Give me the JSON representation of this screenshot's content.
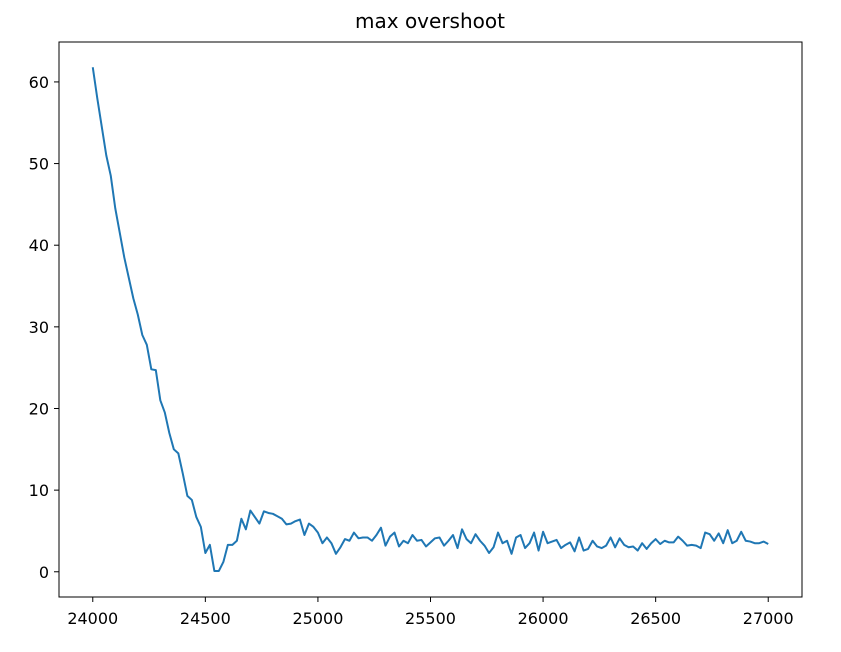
{
  "chart_data": {
    "type": "line",
    "title": "max overshoot",
    "x": [
      24000,
      24020,
      24040,
      24060,
      24080,
      24100,
      24120,
      24140,
      24160,
      24180,
      24200,
      24220,
      24240,
      24260,
      24280,
      24300,
      24320,
      24340,
      24360,
      24380,
      24400,
      24420,
      24440,
      24460,
      24480,
      24500,
      24520,
      24540,
      24560,
      24580,
      24600,
      24620,
      24640,
      24660,
      24680,
      24700,
      24720,
      24740,
      24760,
      24780,
      24800,
      24820,
      24840,
      24860,
      24880,
      24900,
      24920,
      24940,
      24960,
      24980,
      25000,
      25020,
      25040,
      25060,
      25080,
      25100,
      25120,
      25140,
      25160,
      25180,
      25200,
      25220,
      25240,
      25260,
      25280,
      25300,
      25320,
      25340,
      25360,
      25380,
      25400,
      25420,
      25440,
      25460,
      25480,
      25500,
      25520,
      25540,
      25560,
      25580,
      25600,
      25620,
      25640,
      25660,
      25680,
      25700,
      25720,
      25740,
      25760,
      25780,
      25800,
      25820,
      25840,
      25860,
      25880,
      25900,
      25920,
      25940,
      25960,
      25980,
      26000,
      26020,
      26040,
      26060,
      26080,
      26100,
      26120,
      26140,
      26160,
      26180,
      26200,
      26220,
      26240,
      26260,
      26280,
      26300,
      26320,
      26340,
      26360,
      26380,
      26400,
      26420,
      26440,
      26460,
      26480,
      26500,
      26520,
      26540,
      26560,
      26580,
      26600,
      26620,
      26640,
      26660,
      26680,
      26700,
      26720,
      26740,
      26760,
      26780,
      26800,
      26820,
      26840,
      26860,
      26880,
      26900,
      26920,
      26940,
      26960,
      26980,
      27000
    ],
    "series": [
      {
        "color": "#1f77b4",
        "values": [
          61.8,
          58,
          54.5,
          51,
          48.5,
          44.5,
          41.5,
          38.5,
          36,
          33.5,
          31.5,
          29,
          27.8,
          24.8,
          24.7,
          21,
          19.5,
          17,
          15,
          14.5,
          12,
          9.3,
          8.8,
          6.7,
          5.5,
          2.3,
          3.3,
          0.1,
          0.1,
          1.2,
          3.3,
          3.3,
          3.8,
          6.5,
          5.2,
          7.5,
          6.7,
          5.9,
          7.4,
          7.2,
          7.1,
          6.8,
          6.5,
          5.8,
          5.9,
          6.2,
          6.4,
          4.5,
          5.9,
          5.5,
          4.8,
          3.5,
          4.2,
          3.5,
          2.2,
          3.0,
          4.0,
          3.8,
          4.8,
          4.1,
          4.2,
          4.2,
          3.8,
          4.5,
          5.4,
          3.2,
          4.3,
          4.8,
          3.1,
          3.8,
          3.5,
          4.5,
          3.8,
          3.9,
          3.1,
          3.6,
          4.1,
          4.2,
          3.2,
          3.8,
          4.5,
          2.9,
          5.2,
          4.0,
          3.5,
          4.6,
          3.8,
          3.2,
          2.3,
          3.0,
          4.8,
          3.5,
          3.8,
          2.2,
          4.2,
          4.5,
          2.9,
          3.5,
          4.8,
          2.6,
          4.9,
          3.5,
          3.7,
          3.9,
          2.9,
          3.3,
          3.6,
          2.5,
          4.2,
          2.6,
          2.8,
          3.8,
          3.1,
          2.9,
          3.2,
          4.2,
          3.0,
          4.1,
          3.3,
          3.0,
          3.1,
          2.6,
          3.5,
          2.8,
          3.5,
          4.0,
          3.4,
          3.8,
          3.6,
          3.6,
          4.3,
          3.8,
          3.2,
          3.3,
          3.2,
          2.9,
          4.8,
          4.6,
          3.8,
          4.7,
          3.5,
          5.1,
          3.5,
          3.8,
          4.9,
          3.8,
          3.7,
          3.5,
          3.5,
          3.7,
          3.4
        ]
      }
    ],
    "xlim": [
      23850,
      27150
    ],
    "xticks": [
      24000,
      24500,
      25000,
      25500,
      26000,
      26500,
      27000
    ],
    "ylim": [
      -3.09,
      64.89
    ],
    "yticks": [
      0,
      10,
      20,
      30,
      40,
      50,
      60
    ]
  }
}
